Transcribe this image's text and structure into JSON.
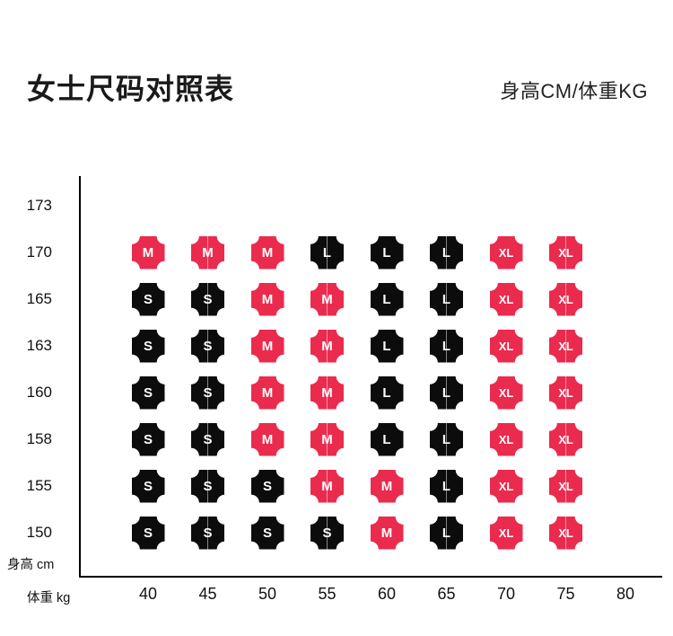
{
  "header": {
    "title": "女士尺码对照表",
    "units_label": "身高CM/体重KG"
  },
  "axis_units": {
    "height_unit": "身高 cm",
    "weight_unit": "体重 kg"
  },
  "chart_data": {
    "type": "heatmap",
    "title": "女士尺码对照表",
    "subtitle": "身高CM/体重KG",
    "xlabel": "体重 kg",
    "ylabel": "身高 cm",
    "x_ticks": [
      "40",
      "45",
      "50",
      "55",
      "60",
      "65",
      "70",
      "75",
      "80"
    ],
    "y_ticks": [
      "173",
      "170",
      "165",
      "163",
      "160",
      "158",
      "155",
      "150"
    ],
    "grid": false,
    "legend_position": "none",
    "colors": {
      "red": "#ea2b4e",
      "black": "#0c0c0c"
    },
    "rows": [
      {
        "height": "170",
        "cells": [
          {
            "size": "M",
            "color": "red"
          },
          {
            "size": "M",
            "color": "red"
          },
          {
            "size": "M",
            "color": "red"
          },
          {
            "size": "L",
            "color": "black"
          },
          {
            "size": "L",
            "color": "black"
          },
          {
            "size": "L",
            "color": "black"
          },
          {
            "size": "XL",
            "color": "red"
          },
          {
            "size": "XL",
            "color": "red"
          }
        ]
      },
      {
        "height": "165",
        "cells": [
          {
            "size": "S",
            "color": "black"
          },
          {
            "size": "S",
            "color": "black"
          },
          {
            "size": "M",
            "color": "red"
          },
          {
            "size": "M",
            "color": "red"
          },
          {
            "size": "L",
            "color": "black"
          },
          {
            "size": "L",
            "color": "black"
          },
          {
            "size": "XL",
            "color": "red"
          },
          {
            "size": "XL",
            "color": "red"
          }
        ]
      },
      {
        "height": "163",
        "cells": [
          {
            "size": "S",
            "color": "black"
          },
          {
            "size": "S",
            "color": "black"
          },
          {
            "size": "M",
            "color": "red"
          },
          {
            "size": "M",
            "color": "red"
          },
          {
            "size": "L",
            "color": "black"
          },
          {
            "size": "L",
            "color": "black"
          },
          {
            "size": "XL",
            "color": "red"
          },
          {
            "size": "XL",
            "color": "red"
          }
        ]
      },
      {
        "height": "160",
        "cells": [
          {
            "size": "S",
            "color": "black"
          },
          {
            "size": "S",
            "color": "black"
          },
          {
            "size": "M",
            "color": "red"
          },
          {
            "size": "M",
            "color": "red"
          },
          {
            "size": "L",
            "color": "black"
          },
          {
            "size": "L",
            "color": "black"
          },
          {
            "size": "XL",
            "color": "red"
          },
          {
            "size": "XL",
            "color": "red"
          }
        ]
      },
      {
        "height": "158",
        "cells": [
          {
            "size": "S",
            "color": "black"
          },
          {
            "size": "S",
            "color": "black"
          },
          {
            "size": "M",
            "color": "red"
          },
          {
            "size": "M",
            "color": "red"
          },
          {
            "size": "L",
            "color": "black"
          },
          {
            "size": "L",
            "color": "black"
          },
          {
            "size": "XL",
            "color": "red"
          },
          {
            "size": "XL",
            "color": "red"
          }
        ]
      },
      {
        "height": "155",
        "cells": [
          {
            "size": "S",
            "color": "black"
          },
          {
            "size": "S",
            "color": "black"
          },
          {
            "size": "S",
            "color": "black"
          },
          {
            "size": "M",
            "color": "red"
          },
          {
            "size": "M",
            "color": "red"
          },
          {
            "size": "L",
            "color": "black"
          },
          {
            "size": "XL",
            "color": "red"
          },
          {
            "size": "XL",
            "color": "red"
          }
        ]
      },
      {
        "height": "150",
        "cells": [
          {
            "size": "S",
            "color": "black"
          },
          {
            "size": "S",
            "color": "black"
          },
          {
            "size": "S",
            "color": "black"
          },
          {
            "size": "S",
            "color": "black"
          },
          {
            "size": "M",
            "color": "red"
          },
          {
            "size": "L",
            "color": "black"
          },
          {
            "size": "XL",
            "color": "red"
          },
          {
            "size": "XL",
            "color": "red"
          }
        ]
      }
    ]
  }
}
